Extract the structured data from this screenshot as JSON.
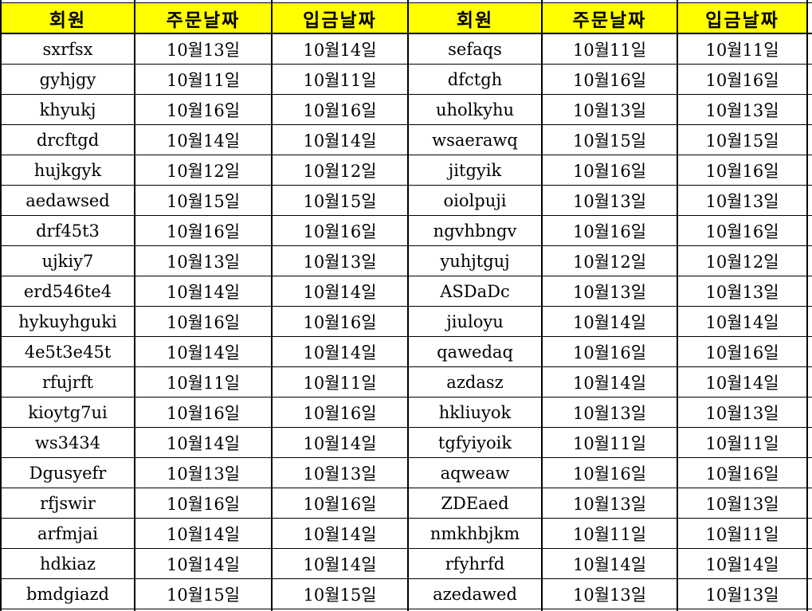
{
  "table": {
    "column_headers": [
      "회원",
      "주문날짜",
      "입금날짜",
      "회원",
      "주문날짜",
      "입금날짜"
    ],
    "rows": [
      [
        "sxrfsx",
        "10월13일",
        "10월14일",
        "sefaqs",
        "10월11일",
        "10월11일"
      ],
      [
        "gyhjgy",
        "10월11일",
        "10월11일",
        "dfctgh",
        "10월16일",
        "10월16일"
      ],
      [
        "khyukj",
        "10월16일",
        "10월16일",
        "uholkyhu",
        "10월13일",
        "10월13일"
      ],
      [
        "drcftgd",
        "10월14일",
        "10월14일",
        "wsaerawq",
        "10월15일",
        "10월15일"
      ],
      [
        "hujkgyk",
        "10월12일",
        "10월12일",
        "jitgyik",
        "10월16일",
        "10월16일"
      ],
      [
        "aedawsed",
        "10월15일",
        "10월15일",
        "oiolpuji",
        "10월13일",
        "10월13일"
      ],
      [
        "drf45t3",
        "10월16일",
        "10월16일",
        "ngvhbngv",
        "10월16일",
        "10월16일"
      ],
      [
        "ujkiy7",
        "10월13일",
        "10월13일",
        "yuhjtguj",
        "10월12일",
        "10월12일"
      ],
      [
        "erd546te4",
        "10월14일",
        "10월14일",
        "ASDaDc",
        "10월13일",
        "10월13일"
      ],
      [
        "hykuyhguki",
        "10월16일",
        "10월16일",
        "jiuloyu",
        "10월14일",
        "10월14일"
      ],
      [
        "4e5t3e45t",
        "10월14일",
        "10월14일",
        "qawedaq",
        "10월16일",
        "10월16일"
      ],
      [
        "rfujrft",
        "10월11일",
        "10월11일",
        "azdasz",
        "10월14일",
        "10월14일"
      ],
      [
        "kioytg7ui",
        "10월16일",
        "10월16일",
        "hkliuyok",
        "10월13일",
        "10월13일"
      ],
      [
        "ws3434",
        "10월14일",
        "10월14일",
        "tgfyiyoik",
        "10월11일",
        "10월11일"
      ],
      [
        "Dgusyefr",
        "10월13일",
        "10월13일",
        "aqweaw",
        "10월16일",
        "10월16일"
      ],
      [
        "rfjswir",
        "10월16일",
        "10월16일",
        "ZDEaed",
        "10월13일",
        "10월13일"
      ],
      [
        "arfmjai",
        "10월14일",
        "10월14일",
        "nmkhbjkm",
        "10월11일",
        "10월11일"
      ],
      [
        "hdkiaz",
        "10월14일",
        "10월14일",
        "rfyhrfd",
        "10월14일",
        "10월14일"
      ],
      [
        "bmdgiazd",
        "10월15일",
        "10월15일",
        "azedawed",
        "10월13일",
        "10월13일"
      ]
    ]
  },
  "colors": {
    "header_bg": "#FFFF00",
    "border": "#000000",
    "text": "#000000",
    "background": "#FFFFFF"
  }
}
